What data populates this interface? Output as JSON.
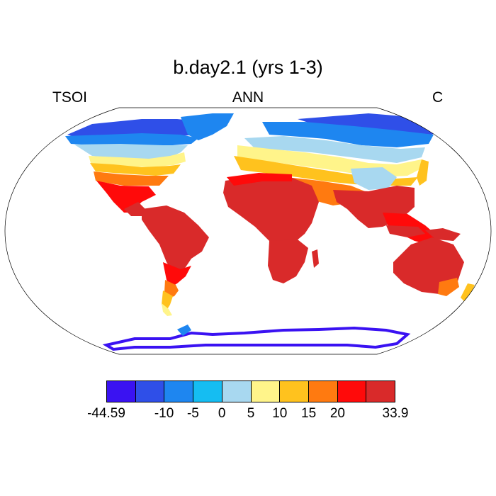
{
  "title": "b.day2.1 (yrs 1-3)",
  "left_label": "TSOI",
  "center_label": "ANN",
  "right_label": "C",
  "colorbar": {
    "colors": [
      "#3a12f2",
      "#2f4fe8",
      "#1e86f0",
      "#15bdf2",
      "#a8d8f0",
      "#fff48a",
      "#ffc21e",
      "#ff7a10",
      "#ff0a0a",
      "#d92a2a"
    ],
    "tick_labels": [
      "-44.59",
      "-10",
      "-5",
      "0",
      "5",
      "10",
      "15",
      "20",
      "33.9"
    ]
  }
}
